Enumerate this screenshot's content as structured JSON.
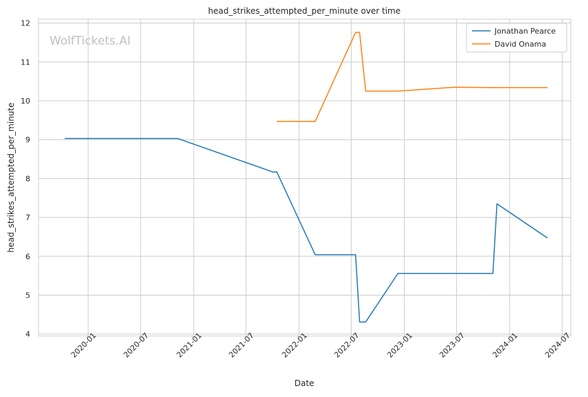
{
  "chart_data": {
    "type": "line",
    "title": "head_strikes_attempted_per_minute over time",
    "xlabel": "Date",
    "ylabel": "head_strikes_attempted_per_minute",
    "watermark": "WolfTickets.AI",
    "x_ticks": [
      "2020-01",
      "2020-07",
      "2021-01",
      "2021-07",
      "2022-01",
      "2022-07",
      "2023-01",
      "2023-07",
      "2024-01",
      "2024-07"
    ],
    "y_ticks": [
      "4",
      "5",
      "6",
      "7",
      "8",
      "9",
      "10",
      "11",
      "12"
    ],
    "xlim": [
      "2019-07-13",
      "2024-07-31"
    ],
    "ylim": [
      3.95,
      12.1
    ],
    "grid": true,
    "legend_position": "top-right",
    "series": [
      {
        "name": "Jonathan Pearce",
        "color": "#1f77b4",
        "points": [
          {
            "x": "2019-10-12",
            "y": 9.03
          },
          {
            "x": "2020-11-07",
            "y": 9.03
          },
          {
            "x": "2021-10-02",
            "y": 8.17
          },
          {
            "x": "2021-10-16",
            "y": 8.17
          },
          {
            "x": "2022-02-26",
            "y": 6.04
          },
          {
            "x": "2022-07-16",
            "y": 6.04
          },
          {
            "x": "2022-07-30",
            "y": 4.31
          },
          {
            "x": "2022-08-20",
            "y": 4.31
          },
          {
            "x": "2022-12-10",
            "y": 5.56
          },
          {
            "x": "2023-11-04",
            "y": 5.56
          },
          {
            "x": "2023-11-18",
            "y": 7.35
          },
          {
            "x": "2024-05-11",
            "y": 6.47
          }
        ]
      },
      {
        "name": "David Onama",
        "color": "#ff7f0e",
        "points": [
          {
            "x": "2021-10-16",
            "y": 9.47
          },
          {
            "x": "2022-02-26",
            "y": 9.47
          },
          {
            "x": "2022-07-16",
            "y": 11.76
          },
          {
            "x": "2022-07-30",
            "y": 11.76
          },
          {
            "x": "2022-08-20",
            "y": 10.25
          },
          {
            "x": "2022-12-10",
            "y": 10.25
          },
          {
            "x": "2023-06-24",
            "y": 10.35
          },
          {
            "x": "2023-11-04",
            "y": 10.34
          },
          {
            "x": "2024-05-11",
            "y": 10.34
          }
        ]
      }
    ]
  }
}
